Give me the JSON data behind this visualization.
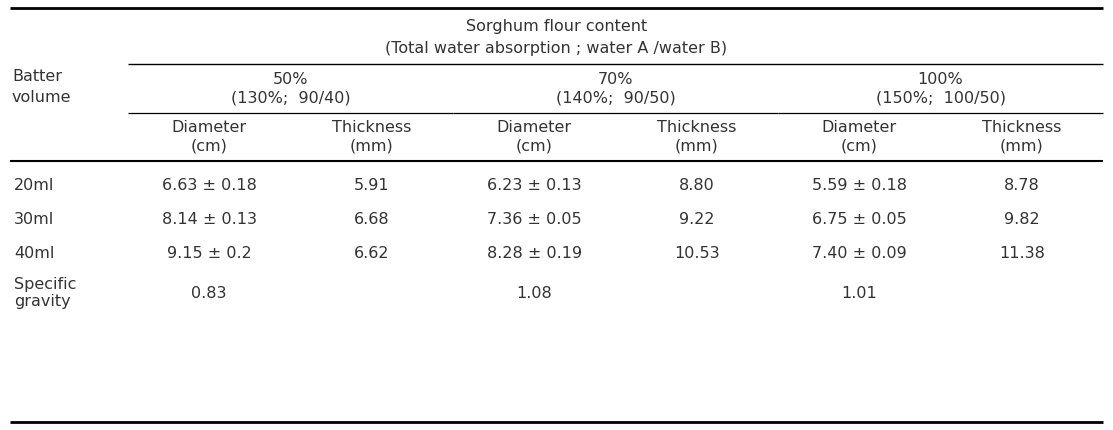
{
  "title_line1": "Sorghum flour content",
  "title_line2": "(Total water absorption ; water A /water B)",
  "col_groups": [
    {
      "label": "50%",
      "sub": "(130%;  90/40)"
    },
    {
      "label": "70%",
      "sub": "(140%;  90/50)"
    },
    {
      "label": "100%",
      "sub": "(150%;  100/50)"
    }
  ],
  "sub_col_labels": [
    "Diameter",
    "Thickness",
    "Diameter",
    "Thickness",
    "Diameter",
    "Thickness"
  ],
  "sub_col_units": [
    "(cm)",
    "(mm)",
    "(cm)",
    "(mm)",
    "(cm)",
    "(mm)"
  ],
  "row_labels": [
    "20ml",
    "30ml",
    "40ml",
    "Specific\ngravity"
  ],
  "batter_volume_label": "Batter\nvolume",
  "data": [
    [
      "6.63 ± 0.18",
      "5.91",
      "6.23 ± 0.13",
      "8.80",
      "5.59 ± 0.18",
      "8.78"
    ],
    [
      "8.14 ± 0.13",
      "6.68",
      "7.36 ± 0.05",
      "9.22",
      "6.75 ± 0.05",
      "9.82"
    ],
    [
      "9.15 ± 0.2",
      "6.62",
      "8.28 ± 0.19",
      "10.53",
      "7.40 ± 0.09",
      "11.38"
    ],
    [
      "0.83",
      "",
      "1.08",
      "",
      "1.01",
      ""
    ]
  ],
  "font_size": 11.5,
  "bg_color": "#ffffff",
  "text_color": "#333333",
  "font_family": "DejaVu Sans"
}
